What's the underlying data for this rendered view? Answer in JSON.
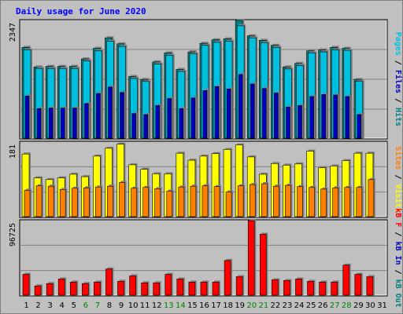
{
  "title": "Daily usage for June 2020",
  "colors": {
    "hits": "#00c0e0",
    "files": "#008080",
    "pages": "#0000c0",
    "visits": "#ffff00",
    "sites": "#ff8000",
    "kb_out": "#e07000",
    "kb_in": "#0000c0",
    "kb_f": "#ff0000",
    "weekend_tick": "#008000",
    "weekday_tick": "#000000",
    "panel_bg": "#c0c0c0",
    "grid": "#808080"
  },
  "chart_data": [
    {
      "type": "bar",
      "name": "hits-files-pages",
      "ymax": 2347,
      "ymax_label": "2347",
      "right_label_parts": [
        {
          "text": "Pages",
          "color": "#00c0e0"
        },
        {
          "text": " / ",
          "color": "#000000"
        },
        {
          "text": "Files",
          "color": "#0000c0"
        },
        {
          "text": " / ",
          "color": "#000000"
        },
        {
          "text": "Hits",
          "color": "#008080"
        }
      ],
      "categories": [
        "1",
        "2",
        "3",
        "4",
        "5",
        "6",
        "7",
        "8",
        "9",
        "10",
        "11",
        "12",
        "13",
        "14",
        "15",
        "16",
        "17",
        "18",
        "19",
        "20",
        "21",
        "22",
        "23",
        "24",
        "25",
        "26",
        "27",
        "28",
        "29",
        "30",
        "31"
      ],
      "series": [
        {
          "name": "Hits",
          "values": [
            1810,
            1420,
            1430,
            1430,
            1430,
            1580,
            1790,
            2000,
            1880,
            1230,
            1170,
            1520,
            1700,
            1370,
            1720,
            1890,
            1960,
            1980,
            2347,
            2040,
            1950,
            1850,
            1420,
            1490,
            1740,
            1760,
            1810,
            1790,
            1170,
            null,
            null
          ]
        },
        {
          "name": "Files",
          "values": [
            1760,
            1390,
            1390,
            1390,
            1390,
            1540,
            1740,
            1930,
            1830,
            1190,
            1130,
            1480,
            1650,
            1330,
            1680,
            1850,
            1910,
            1930,
            2240,
            2000,
            1900,
            1810,
            1380,
            1450,
            1700,
            1720,
            1760,
            1750,
            1130,
            null,
            null
          ]
        },
        {
          "name": "Pages",
          "values": [
            840,
            590,
            600,
            600,
            600,
            690,
            890,
            1020,
            910,
            490,
            470,
            650,
            790,
            590,
            800,
            950,
            1030,
            980,
            1270,
            1080,
            990,
            900,
            620,
            650,
            830,
            870,
            860,
            830,
            470,
            null,
            null
          ]
        }
      ],
      "grid": true
    },
    {
      "type": "bar",
      "name": "visits-sites",
      "ymax": 181,
      "ymax_label": "181",
      "right_label_parts": [
        {
          "text": "Sites",
          "color": "#ff8000"
        },
        {
          "text": " / ",
          "color": "#000000"
        },
        {
          "text": "Visits",
          "color": "#ffff00"
        }
      ],
      "series": [
        {
          "name": "Visits",
          "values": [
            152,
            94,
            90,
            94,
            103,
            97,
            147,
            166,
            176,
            126,
            115,
            104,
            104,
            154,
            137,
            147,
            153,
            163,
            174,
            145,
            103,
            129,
            125,
            128,
            159,
            119,
            123,
            136,
            154,
            154,
            null
          ]
        },
        {
          "name": "Sites",
          "values": [
            64,
            75,
            74,
            66,
            69,
            70,
            72,
            74,
            83,
            69,
            71,
            68,
            62,
            72,
            74,
            75,
            73,
            60,
            75,
            78,
            80,
            74,
            76,
            73,
            71,
            67,
            70,
            71,
            71,
            90,
            null
          ]
        }
      ],
      "grid": true
    },
    {
      "type": "bar",
      "name": "kbf-kbin-kbout",
      "ymax": 96725,
      "ymax_label": "96725",
      "right_label_parts": [
        {
          "text": "kB F",
          "color": "#ff0000"
        },
        {
          "text": " / ",
          "color": "#000000"
        },
        {
          "text": "kB In",
          "color": "#0000c0"
        },
        {
          "text": " / ",
          "color": "#000000"
        },
        {
          "text": "kB Out",
          "color": "#008080"
        }
      ],
      "series": [
        {
          "name": "kB F",
          "values": [
            27000,
            12000,
            15000,
            21000,
            17000,
            15000,
            17000,
            34000,
            18000,
            25000,
            16000,
            16000,
            27000,
            21000,
            17000,
            17000,
            17000,
            45000,
            24000,
            96725,
            79000,
            20000,
            19000,
            21000,
            18000,
            17000,
            17000,
            39000,
            27000,
            24000,
            null
          ]
        }
      ],
      "grid": true
    }
  ],
  "x_ticks": [
    {
      "label": "1",
      "weekend": false
    },
    {
      "label": "2",
      "weekend": false
    },
    {
      "label": "3",
      "weekend": false
    },
    {
      "label": "4",
      "weekend": false
    },
    {
      "label": "5",
      "weekend": false
    },
    {
      "label": "6",
      "weekend": true
    },
    {
      "label": "7",
      "weekend": true
    },
    {
      "label": "8",
      "weekend": false
    },
    {
      "label": "9",
      "weekend": false
    },
    {
      "label": "10",
      "weekend": false
    },
    {
      "label": "11",
      "weekend": false
    },
    {
      "label": "12",
      "weekend": false
    },
    {
      "label": "13",
      "weekend": true
    },
    {
      "label": "14",
      "weekend": true
    },
    {
      "label": "15",
      "weekend": false
    },
    {
      "label": "16",
      "weekend": false
    },
    {
      "label": "17",
      "weekend": false
    },
    {
      "label": "18",
      "weekend": false
    },
    {
      "label": "19",
      "weekend": false
    },
    {
      "label": "20",
      "weekend": true
    },
    {
      "label": "21",
      "weekend": true
    },
    {
      "label": "22",
      "weekend": false
    },
    {
      "label": "23",
      "weekend": false
    },
    {
      "label": "24",
      "weekend": false
    },
    {
      "label": "25",
      "weekend": false
    },
    {
      "label": "26",
      "weekend": false
    },
    {
      "label": "27",
      "weekend": true
    },
    {
      "label": "28",
      "weekend": true
    },
    {
      "label": "29",
      "weekend": false
    },
    {
      "label": "30",
      "weekend": false
    },
    {
      "label": "31",
      "weekend": false
    }
  ]
}
